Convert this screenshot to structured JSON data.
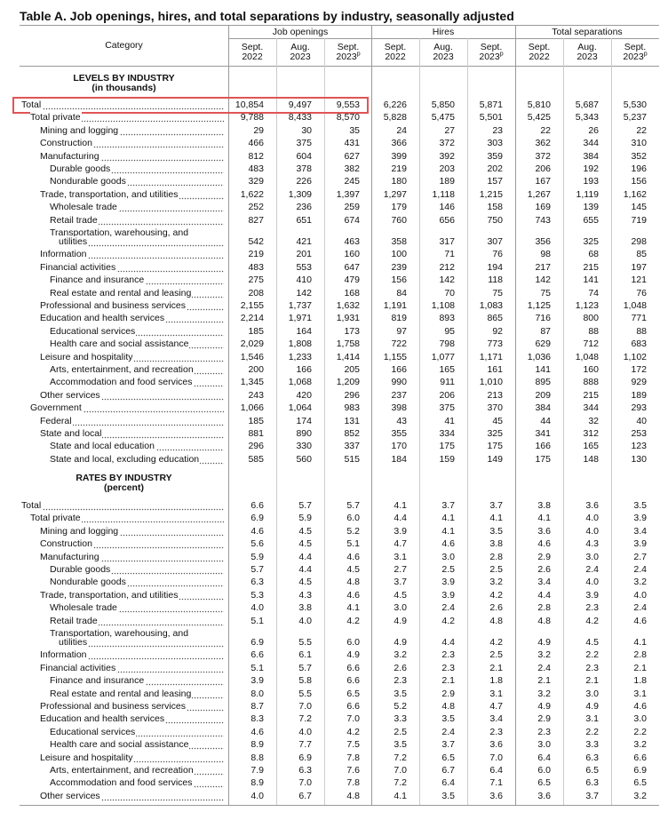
{
  "header": {
    "title": "Table A. Job openings, hires, and total separations by industry, seasonally adjusted",
    "category": "Category"
  },
  "groups": [
    {
      "name": "Job openings",
      "periods": [
        {
          "month": "Sept.",
          "year": "2022"
        },
        {
          "month": "Aug.",
          "year": "2023"
        },
        {
          "month": "Sept.",
          "year": "2023",
          "note": "p"
        }
      ]
    },
    {
      "name": "Hires",
      "periods": [
        {
          "month": "Sept.",
          "year": "2022"
        },
        {
          "month": "Aug.",
          "year": "2023"
        },
        {
          "month": "Sept.",
          "year": "2023",
          "note": "p"
        }
      ]
    },
    {
      "name": "Total separations",
      "periods": [
        {
          "month": "Sept.",
          "year": "2022"
        },
        {
          "month": "Aug.",
          "year": "2023"
        },
        {
          "month": "Sept.",
          "year": "2023",
          "note": "p"
        }
      ]
    }
  ],
  "sections": [
    {
      "title": "LEVELS BY INDUSTRY",
      "unit": "(in thousands)",
      "rows": [
        {
          "label": "Total",
          "level": 0,
          "highlight": true,
          "values": [
            "10,854",
            "9,497",
            "9,553",
            "6,226",
            "5,850",
            "5,871",
            "5,810",
            "5,687",
            "5,530"
          ]
        },
        {
          "label": "Total private",
          "level": 1,
          "values": [
            "9,788",
            "8,433",
            "8,570",
            "5,828",
            "5,475",
            "5,501",
            "5,425",
            "5,343",
            "5,237"
          ]
        },
        {
          "label": "Mining and logging",
          "level": 2,
          "values": [
            "29",
            "30",
            "35",
            "24",
            "27",
            "23",
            "22",
            "26",
            "22"
          ]
        },
        {
          "label": "Construction",
          "level": 2,
          "values": [
            "466",
            "375",
            "431",
            "366",
            "372",
            "303",
            "362",
            "344",
            "310"
          ]
        },
        {
          "label": "Manufacturing",
          "level": 2,
          "values": [
            "812",
            "604",
            "627",
            "399",
            "392",
            "359",
            "372",
            "384",
            "352"
          ]
        },
        {
          "label": "Durable goods",
          "level": 3,
          "values": [
            "483",
            "378",
            "382",
            "219",
            "203",
            "202",
            "206",
            "192",
            "196"
          ]
        },
        {
          "label": "Nondurable goods",
          "level": 3,
          "values": [
            "329",
            "226",
            "245",
            "180",
            "189",
            "157",
            "167",
            "193",
            "156"
          ]
        },
        {
          "label": "Trade, transportation, and utilities",
          "level": 2,
          "values": [
            "1,622",
            "1,309",
            "1,397",
            "1,297",
            "1,118",
            "1,215",
            "1,267",
            "1,119",
            "1,162"
          ]
        },
        {
          "label": "Wholesale trade",
          "level": 3,
          "values": [
            "252",
            "236",
            "259",
            "179",
            "146",
            "158",
            "169",
            "139",
            "145"
          ]
        },
        {
          "label": "Retail trade",
          "level": 3,
          "values": [
            "827",
            "651",
            "674",
            "760",
            "656",
            "750",
            "743",
            "655",
            "719"
          ]
        },
        {
          "label": [
            "Transportation, warehousing, and",
            "utilities"
          ],
          "level": 3,
          "values": [
            "542",
            "421",
            "463",
            "358",
            "317",
            "307",
            "356",
            "325",
            "298"
          ]
        },
        {
          "label": "Information",
          "level": 2,
          "values": [
            "219",
            "201",
            "160",
            "100",
            "71",
            "76",
            "98",
            "68",
            "85"
          ]
        },
        {
          "label": "Financial activities",
          "level": 2,
          "values": [
            "483",
            "553",
            "647",
            "239",
            "212",
            "194",
            "217",
            "215",
            "197"
          ]
        },
        {
          "label": "Finance and insurance",
          "level": 3,
          "values": [
            "275",
            "410",
            "479",
            "156",
            "142",
            "118",
            "142",
            "141",
            "121"
          ]
        },
        {
          "label": "Real estate and rental and leasing",
          "level": 3,
          "values": [
            "208",
            "142",
            "168",
            "84",
            "70",
            "75",
            "75",
            "74",
            "76"
          ]
        },
        {
          "label": "Professional and business services",
          "level": 2,
          "values": [
            "2,155",
            "1,737",
            "1,632",
            "1,191",
            "1,108",
            "1,083",
            "1,125",
            "1,123",
            "1,048"
          ]
        },
        {
          "label": "Education and health services",
          "level": 2,
          "values": [
            "2,214",
            "1,971",
            "1,931",
            "819",
            "893",
            "865",
            "716",
            "800",
            "771"
          ]
        },
        {
          "label": "Educational services",
          "level": 3,
          "values": [
            "185",
            "164",
            "173",
            "97",
            "95",
            "92",
            "87",
            "88",
            "88"
          ]
        },
        {
          "label": "Health care and social assistance",
          "level": 3,
          "values": [
            "2,029",
            "1,808",
            "1,758",
            "722",
            "798",
            "773",
            "629",
            "712",
            "683"
          ]
        },
        {
          "label": "Leisure and hospitality",
          "level": 2,
          "values": [
            "1,546",
            "1,233",
            "1,414",
            "1,155",
            "1,077",
            "1,171",
            "1,036",
            "1,048",
            "1,102"
          ]
        },
        {
          "label": "Arts, entertainment, and recreation",
          "level": 3,
          "values": [
            "200",
            "166",
            "205",
            "166",
            "165",
            "161",
            "141",
            "160",
            "172"
          ]
        },
        {
          "label": "Accommodation and food services",
          "level": 3,
          "values": [
            "1,345",
            "1,068",
            "1,209",
            "990",
            "911",
            "1,010",
            "895",
            "888",
            "929"
          ]
        },
        {
          "label": "Other services",
          "level": 2,
          "values": [
            "243",
            "420",
            "296",
            "237",
            "206",
            "213",
            "209",
            "215",
            "189"
          ]
        },
        {
          "label": "Government",
          "level": 1,
          "values": [
            "1,066",
            "1,064",
            "983",
            "398",
            "375",
            "370",
            "384",
            "344",
            "293"
          ]
        },
        {
          "label": "Federal",
          "level": 2,
          "values": [
            "185",
            "174",
            "131",
            "43",
            "41",
            "45",
            "44",
            "32",
            "40"
          ]
        },
        {
          "label": "State and local",
          "level": 2,
          "values": [
            "881",
            "890",
            "852",
            "355",
            "334",
            "325",
            "341",
            "312",
            "253"
          ]
        },
        {
          "label": "State and local education",
          "level": 3,
          "values": [
            "296",
            "330",
            "337",
            "170",
            "175",
            "175",
            "166",
            "165",
            "123"
          ]
        },
        {
          "label": "State and local, excluding education",
          "level": 3,
          "values": [
            "585",
            "560",
            "515",
            "184",
            "159",
            "149",
            "175",
            "148",
            "130"
          ]
        }
      ]
    },
    {
      "title": "RATES BY INDUSTRY",
      "unit": "(percent)",
      "rows": [
        {
          "label": "Total",
          "level": 0,
          "values": [
            "6.6",
            "5.7",
            "5.7",
            "4.1",
            "3.7",
            "3.7",
            "3.8",
            "3.6",
            "3.5"
          ]
        },
        {
          "label": "Total private",
          "level": 1,
          "values": [
            "6.9",
            "5.9",
            "6.0",
            "4.4",
            "4.1",
            "4.1",
            "4.1",
            "4.0",
            "3.9"
          ]
        },
        {
          "label": "Mining and logging",
          "level": 2,
          "values": [
            "4.6",
            "4.5",
            "5.2",
            "3.9",
            "4.1",
            "3.5",
            "3.6",
            "4.0",
            "3.4"
          ]
        },
        {
          "label": "Construction",
          "level": 2,
          "values": [
            "5.6",
            "4.5",
            "5.1",
            "4.7",
            "4.6",
            "3.8",
            "4.6",
            "4.3",
            "3.9"
          ]
        },
        {
          "label": "Manufacturing",
          "level": 2,
          "values": [
            "5.9",
            "4.4",
            "4.6",
            "3.1",
            "3.0",
            "2.8",
            "2.9",
            "3.0",
            "2.7"
          ]
        },
        {
          "label": "Durable goods",
          "level": 3,
          "values": [
            "5.7",
            "4.4",
            "4.5",
            "2.7",
            "2.5",
            "2.5",
            "2.6",
            "2.4",
            "2.4"
          ]
        },
        {
          "label": "Nondurable goods",
          "level": 3,
          "values": [
            "6.3",
            "4.5",
            "4.8",
            "3.7",
            "3.9",
            "3.2",
            "3.4",
            "4.0",
            "3.2"
          ]
        },
        {
          "label": "Trade, transportation, and utilities",
          "level": 2,
          "values": [
            "5.3",
            "4.3",
            "4.6",
            "4.5",
            "3.9",
            "4.2",
            "4.4",
            "3.9",
            "4.0"
          ]
        },
        {
          "label": "Wholesale trade",
          "level": 3,
          "values": [
            "4.0",
            "3.8",
            "4.1",
            "3.0",
            "2.4",
            "2.6",
            "2.8",
            "2.3",
            "2.4"
          ]
        },
        {
          "label": "Retail trade",
          "level": 3,
          "values": [
            "5.1",
            "4.0",
            "4.2",
            "4.9",
            "4.2",
            "4.8",
            "4.8",
            "4.2",
            "4.6"
          ]
        },
        {
          "label": [
            "Transportation, warehousing, and",
            "utilities"
          ],
          "level": 3,
          "values": [
            "6.9",
            "5.5",
            "6.0",
            "4.9",
            "4.4",
            "4.2",
            "4.9",
            "4.5",
            "4.1"
          ]
        },
        {
          "label": "Information",
          "level": 2,
          "values": [
            "6.6",
            "6.1",
            "4.9",
            "3.2",
            "2.3",
            "2.5",
            "3.2",
            "2.2",
            "2.8"
          ]
        },
        {
          "label": "Financial activities",
          "level": 2,
          "values": [
            "5.1",
            "5.7",
            "6.6",
            "2.6",
            "2.3",
            "2.1",
            "2.4",
            "2.3",
            "2.1"
          ]
        },
        {
          "label": "Finance and insurance",
          "level": 3,
          "values": [
            "3.9",
            "5.8",
            "6.6",
            "2.3",
            "2.1",
            "1.8",
            "2.1",
            "2.1",
            "1.8"
          ]
        },
        {
          "label": "Real estate and rental and leasing",
          "level": 3,
          "values": [
            "8.0",
            "5.5",
            "6.5",
            "3.5",
            "2.9",
            "3.1",
            "3.2",
            "3.0",
            "3.1"
          ]
        },
        {
          "label": "Professional and business services",
          "level": 2,
          "values": [
            "8.7",
            "7.0",
            "6.6",
            "5.2",
            "4.8",
            "4.7",
            "4.9",
            "4.9",
            "4.6"
          ]
        },
        {
          "label": "Education and health services",
          "level": 2,
          "values": [
            "8.3",
            "7.2",
            "7.0",
            "3.3",
            "3.5",
            "3.4",
            "2.9",
            "3.1",
            "3.0"
          ]
        },
        {
          "label": "Educational services",
          "level": 3,
          "values": [
            "4.6",
            "4.0",
            "4.2",
            "2.5",
            "2.4",
            "2.3",
            "2.3",
            "2.2",
            "2.2"
          ]
        },
        {
          "label": "Health care and social assistance",
          "level": 3,
          "values": [
            "8.9",
            "7.7",
            "7.5",
            "3.5",
            "3.7",
            "3.6",
            "3.0",
            "3.3",
            "3.2"
          ]
        },
        {
          "label": "Leisure and hospitality",
          "level": 2,
          "values": [
            "8.8",
            "6.9",
            "7.8",
            "7.2",
            "6.5",
            "7.0",
            "6.4",
            "6.3",
            "6.6"
          ]
        },
        {
          "label": "Arts, entertainment, and recreation",
          "level": 3,
          "values": [
            "7.9",
            "6.3",
            "7.6",
            "7.0",
            "6.7",
            "6.4",
            "6.0",
            "6.5",
            "6.9"
          ]
        },
        {
          "label": "Accommodation and food services",
          "level": 3,
          "values": [
            "8.9",
            "7.0",
            "7.8",
            "7.2",
            "6.4",
            "7.1",
            "6.5",
            "6.3",
            "6.5"
          ]
        },
        {
          "label": "Other services",
          "level": 2,
          "values": [
            "4.0",
            "6.7",
            "4.8",
            "4.1",
            "3.5",
            "3.6",
            "3.6",
            "3.7",
            "3.2"
          ]
        }
      ]
    }
  ]
}
